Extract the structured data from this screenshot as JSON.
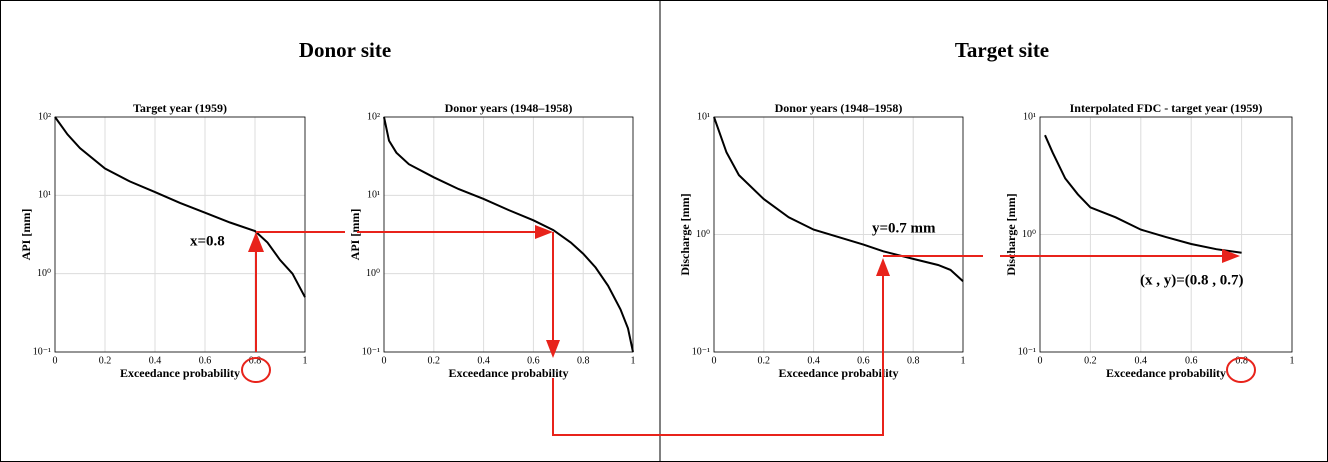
{
  "sections": [
    {
      "title": "Donor site"
    },
    {
      "title": "Target site"
    }
  ],
  "annotations": [
    "x=0.8",
    "y=0.7 mm",
    "(x , y)=(0.8 , 0.7)"
  ],
  "chart_data": [
    {
      "type": "line",
      "title": "Target year (1959)",
      "x_label": "Exceedance probability",
      "y_label": "API [mm]",
      "x": [
        0,
        0.05,
        0.1,
        0.2,
        0.3,
        0.4,
        0.5,
        0.6,
        0.7,
        0.8,
        0.85,
        0.9,
        0.95,
        1
      ],
      "values": [
        100,
        60,
        40,
        22,
        15,
        11,
        8,
        6,
        4.5,
        3.5,
        2.5,
        1.5,
        1,
        0.5
      ],
      "color": "#000000",
      "log_y": true,
      "grid": true,
      "xlim": [
        0,
        1
      ],
      "xticks": [
        0,
        0.2,
        0.4,
        0.6,
        0.8,
        1
      ],
      "ylim": [
        0.1,
        100
      ],
      "yticks": [
        {
          "value": 0.1,
          "label": "10⁻¹"
        },
        {
          "value": 1,
          "label": "10⁰"
        },
        {
          "value": 10,
          "label": "10¹"
        },
        {
          "value": 100,
          "label": "10²"
        }
      ]
    },
    {
      "type": "line",
      "title": "Donor years (1948–1958)",
      "x_label": "Exceedance probability",
      "y_label": "API [mm]",
      "x": [
        0,
        0.02,
        0.05,
        0.1,
        0.2,
        0.3,
        0.4,
        0.5,
        0.6,
        0.68,
        0.75,
        0.8,
        0.85,
        0.9,
        0.95,
        0.98,
        1
      ],
      "values": [
        100,
        50,
        35,
        25,
        17,
        12,
        9,
        6.5,
        4.8,
        3.6,
        2.5,
        1.8,
        1.2,
        0.7,
        0.35,
        0.2,
        0.1
      ],
      "color": "#000000",
      "log_y": true,
      "grid": true,
      "xlim": [
        0,
        1
      ],
      "xticks": [
        0,
        0.2,
        0.4,
        0.6,
        0.8,
        1
      ],
      "ylim": [
        0.1,
        100
      ],
      "yticks": [
        {
          "value": 0.1,
          "label": "10⁻¹"
        },
        {
          "value": 1,
          "label": "10⁰"
        },
        {
          "value": 10,
          "label": "10¹"
        },
        {
          "value": 100,
          "label": "10²"
        }
      ]
    },
    {
      "type": "line",
      "title": "Donor years (1948–1958)",
      "x_label": "Exceedance probability",
      "y_label": "Discharge [mm]",
      "x": [
        0,
        0.05,
        0.1,
        0.2,
        0.3,
        0.4,
        0.5,
        0.6,
        0.68,
        0.8,
        0.9,
        0.95,
        1
      ],
      "values": [
        10,
        5,
        3.2,
        2,
        1.4,
        1.1,
        0.95,
        0.82,
        0.72,
        0.62,
        0.55,
        0.5,
        0.4
      ],
      "color": "#000000",
      "log_y": true,
      "grid": true,
      "xlim": [
        0,
        1
      ],
      "xticks": [
        0,
        0.2,
        0.4,
        0.6,
        0.8,
        1
      ],
      "ylim": [
        0.1,
        10
      ],
      "yticks": [
        {
          "value": 0.1,
          "label": "10⁻¹"
        },
        {
          "value": 1,
          "label": "10⁰"
        },
        {
          "value": 10,
          "label": "10¹"
        }
      ]
    },
    {
      "type": "line",
      "title": "Interpolated FDC - target year (1959)",
      "x_label": "Exceedance probability",
      "y_label": "Discharge [mm]",
      "x": [
        0.02,
        0.05,
        0.1,
        0.15,
        0.2,
        0.3,
        0.4,
        0.5,
        0.6,
        0.7,
        0.8
      ],
      "values": [
        7,
        5,
        3,
        2.2,
        1.7,
        1.4,
        1.1,
        0.95,
        0.83,
        0.75,
        0.7
      ],
      "color": "#000000",
      "log_y": true,
      "grid": true,
      "xlim": [
        0,
        1
      ],
      "xticks": [
        0,
        0.2,
        0.4,
        0.6,
        0.8,
        1
      ],
      "ylim": [
        0.1,
        10
      ],
      "yticks": [
        {
          "value": 0.1,
          "label": "10⁻¹"
        },
        {
          "value": 1,
          "label": "10⁰"
        },
        {
          "value": 10,
          "label": "10¹"
        }
      ]
    }
  ]
}
